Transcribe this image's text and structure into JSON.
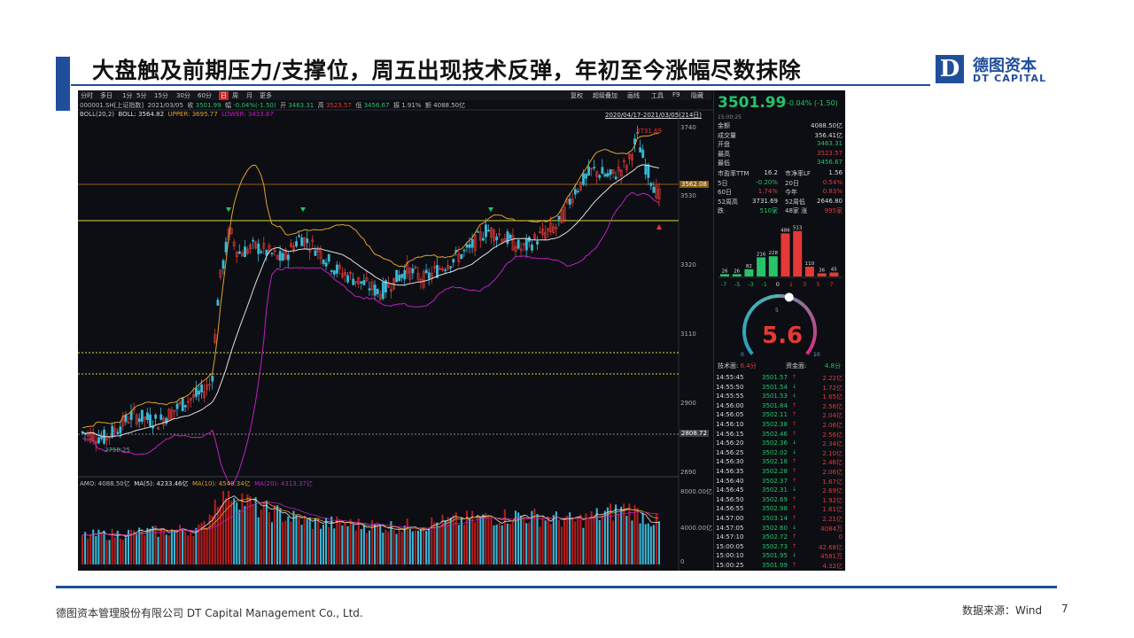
{
  "slide": {
    "title": "大盘触及前期压力/支撑位，周五出现技术反弹，年初至今涨幅尽数抹除",
    "logo_mark": "D",
    "logo_cn": "德图资本",
    "logo_en": "DT CAPITAL",
    "footer_company": "德图资本管理股份有限公司  DT Capital  Management  Co., Ltd.",
    "footer_source": "数据来源：Wind",
    "page_number": "7"
  },
  "toolbar": {
    "left_items": [
      "分时",
      "多日",
      "1分",
      "5分",
      "15分",
      "30分",
      "60分",
      "日",
      "周",
      "月",
      "更多"
    ],
    "active_item": "日",
    "right_items": [
      "复权",
      "超级叠加",
      "画线",
      "工具",
      "F9",
      "隐藏"
    ]
  },
  "kline": {
    "info_code": "000001.SH[上证指数]",
    "info_date": "2021/03/05",
    "info_close_label": "收",
    "info_close": "3501.99",
    "info_chg_label": "幅",
    "info_chg": "-0.04%(-1.50)",
    "info_open_label": "开",
    "info_open": "3463.31",
    "info_high_label": "高",
    "info_high": "3523.57",
    "info_low_label": "低",
    "info_low": "3456.67",
    "info_amp_label": "振",
    "info_amp": "1.91%",
    "info_amt_label": "额",
    "info_amt": "4088.50亿",
    "boll_label": "BOLL(20,2)",
    "boll_mid": "BOLL: 3564.82",
    "boll_upper": "UPPER: 3695.77",
    "boll_lower": "LOWER: 3433.87",
    "range": "2020/04/17-2021/03/05(214日)",
    "y_ticks": [
      "3740",
      "3530",
      "3320",
      "3110",
      "2900",
      "2690"
    ],
    "hi_mark": "3731.69",
    "lo_mark": "2758.25",
    "tag_upper": "3562.08",
    "tag_lower": "2808.72",
    "y_range": [
      2690,
      3760
    ]
  },
  "volume": {
    "amo": "AMO: 4088.50亿",
    "ma5": "MA(5): 4233.46亿",
    "ma10": "MA(10): 4549.34亿",
    "ma20": "MA(20): 4313.37亿",
    "y_ticks": [
      "8000.00亿",
      "4000.00亿",
      "0"
    ]
  },
  "quote": {
    "price": "3501.99",
    "change": "-0.04% (-1.50)",
    "time": "15:00:25",
    "rows": [
      {
        "k": "金额",
        "v": "4088.50亿",
        "c": "#dddddd"
      },
      {
        "k": "成交量",
        "v": "356.41亿",
        "c": "#dddddd"
      },
      {
        "k": "开盘",
        "v": "3463.31",
        "c": "#27c26a"
      },
      {
        "k": "最高",
        "v": "3523.57",
        "c": "#e53935"
      },
      {
        "k": "最低",
        "v": "3456.67",
        "c": "#27c26a"
      }
    ],
    "rows4": [
      {
        "a": "市盈率TTM",
        "b": "16.2",
        "c": "市净率LF",
        "d": "1.56",
        "bc": "#dddddd",
        "dc": "#dddddd"
      },
      {
        "a": "5日",
        "b": "-0.20%",
        "c": "20日",
        "d": "0.54%",
        "bc": "#27c26a",
        "dc": "#e53935"
      },
      {
        "a": "60日",
        "b": "1.74%",
        "c": "今年",
        "d": "0.83%",
        "bc": "#e53935",
        "dc": "#e53935"
      },
      {
        "a": "52周高",
        "b": "3731.69",
        "c": "52周低",
        "d": "2646.80",
        "bc": "#dddddd",
        "dc": "#dddddd"
      },
      {
        "a": "跌",
        "b": "510家",
        "c": "48家 涨",
        "d": "995家",
        "bc": "#27c26a",
        "dc": "#e53935"
      }
    ]
  },
  "distribution": {
    "values": [
      26,
      26,
      82,
      216,
      228,
      486,
      513,
      110,
      36,
      45
    ],
    "x_labels": [
      "-7",
      "-5",
      "-3",
      "-1",
      "0",
      "1",
      "3",
      "5",
      "7"
    ]
  },
  "gauge": {
    "value": "5.6",
    "top_label": "5",
    "left_label": "0",
    "right_label": "10",
    "tech_label": "技术面:",
    "tech_value": "6.4分",
    "fund_label": "资金面:",
    "fund_value": "4.8分"
  },
  "ticks": [
    {
      "t": "14:55:45",
      "p": "3501.57",
      "a": "2.22亿",
      "d": "up"
    },
    {
      "t": "14:55:50",
      "p": "3501.54",
      "a": "1.72亿",
      "d": "down"
    },
    {
      "t": "14:55:55",
      "p": "3501.53",
      "a": "1.65亿",
      "d": "down"
    },
    {
      "t": "14:56:00",
      "p": "3501.84",
      "a": "2.56亿",
      "d": "up"
    },
    {
      "t": "14:56:05",
      "p": "3502.11",
      "a": "2.04亿",
      "d": "up"
    },
    {
      "t": "14:56:10",
      "p": "3502.38",
      "a": "2.06亿",
      "d": "up"
    },
    {
      "t": "14:56:15",
      "p": "3502.46",
      "a": "2.56亿",
      "d": "up"
    },
    {
      "t": "14:56:20",
      "p": "3502.36",
      "a": "2.34亿",
      "d": "down"
    },
    {
      "t": "14:56:25",
      "p": "3502.02",
      "a": "2.10亿",
      "d": "down"
    },
    {
      "t": "14:56:30",
      "p": "3502.18",
      "a": "2.46亿",
      "d": "up"
    },
    {
      "t": "14:56:35",
      "p": "3502.28",
      "a": "2.06亿",
      "d": "up"
    },
    {
      "t": "14:56:40",
      "p": "3502.37",
      "a": "1.67亿",
      "d": "up"
    },
    {
      "t": "14:56:45",
      "p": "3502.31",
      "a": "2.69亿",
      "d": "down"
    },
    {
      "t": "14:56:50",
      "p": "3502.69",
      "a": "1.92亿",
      "d": "up"
    },
    {
      "t": "14:56:55",
      "p": "3502.98",
      "a": "1.61亿",
      "d": "up"
    },
    {
      "t": "14:57:00",
      "p": "3503.14",
      "a": "2.21亿",
      "d": "up"
    },
    {
      "t": "14:57:05",
      "p": "3502.60",
      "a": "4084万",
      "d": "down"
    },
    {
      "t": "14:57:10",
      "p": "3502.72",
      "a": "0",
      "d": "up"
    },
    {
      "t": "15:00:05",
      "p": "3502.73",
      "a": "42.68亿",
      "d": "up"
    },
    {
      "t": "15:00:10",
      "p": "3501.95",
      "a": "4581万",
      "d": "down"
    },
    {
      "t": "15:00:25",
      "p": "3501.99",
      "a": "4.32亿",
      "d": "up"
    }
  ],
  "colors": {
    "brand": "#1f4e9a",
    "up": "#e53935",
    "down": "#27c26a",
    "boll_upper": "#e0a030",
    "boll_mid": "#e0e0e0",
    "boll_lower": "#c020c0",
    "support_line": "#d8d840",
    "volume_up": "#b71c1c",
    "volume_down": "#3ab8d8"
  }
}
